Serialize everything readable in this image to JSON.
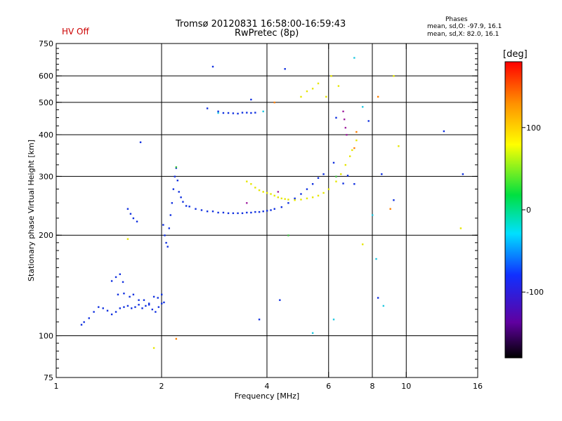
{
  "header": {
    "hv_status": "HV Off",
    "title_line1": "Tromsø 20120831 16:58:00-16:59:43",
    "title_line2": "RwPretec (8p)"
  },
  "stats": {
    "heading": "Phases",
    "line_o": "mean, sd,O: -97.9, 16.1",
    "line_x": "mean, sd,X:  82.0, 16.1"
  },
  "colorbar": {
    "label": "[deg]",
    "ticks": [
      {
        "value": 100,
        "label": "100"
      },
      {
        "value": 0,
        "label": "0"
      },
      {
        "value": -100,
        "label": "-100"
      }
    ],
    "range": [
      -180,
      180
    ]
  },
  "chart_data": {
    "type": "scatter",
    "xlabel": "Frequency [MHz]",
    "ylabel": "Stationary phase Virtual Height [km]",
    "xscale": "log",
    "yscale": "log",
    "xlim": [
      1,
      16
    ],
    "ylim": [
      75,
      750
    ],
    "x_ticks": [
      {
        "value": 1,
        "label": "1"
      },
      {
        "value": 2,
        "label": "2"
      },
      {
        "value": 4,
        "label": "4"
      },
      {
        "value": 6,
        "label": "6"
      },
      {
        "value": 8,
        "label": "8"
      },
      {
        "value": 10,
        "label": "10"
      },
      {
        "value": 16,
        "label": "16"
      }
    ],
    "y_ticks": [
      {
        "value": 75,
        "label": "75"
      },
      {
        "value": 100,
        "label": "100"
      },
      {
        "value": 200,
        "label": "200"
      },
      {
        "value": 300,
        "label": "300"
      },
      {
        "value": 400,
        "label": "400"
      },
      {
        "value": 500,
        "label": "500"
      },
      {
        "value": 600,
        "label": "600"
      },
      {
        "value": 750,
        "label": "750"
      }
    ],
    "x_grid": [
      2,
      4,
      6,
      8,
      10
    ],
    "y_grid": [
      100,
      200,
      300,
      400,
      500,
      600
    ],
    "series": [
      {
        "color": "#1030e0",
        "points": [
          [
            1.18,
            108
          ],
          [
            1.2,
            110
          ],
          [
            1.24,
            113
          ],
          [
            1.28,
            118
          ],
          [
            1.32,
            122
          ],
          [
            1.36,
            121
          ],
          [
            1.4,
            119
          ],
          [
            1.44,
            116
          ],
          [
            1.48,
            118
          ],
          [
            1.52,
            121
          ],
          [
            1.56,
            122
          ],
          [
            1.6,
            123
          ],
          [
            1.64,
            121
          ],
          [
            1.68,
            122
          ],
          [
            1.72,
            124
          ],
          [
            1.76,
            121
          ],
          [
            1.8,
            123
          ],
          [
            1.84,
            124
          ],
          [
            1.88,
            120
          ],
          [
            1.92,
            118
          ],
          [
            1.96,
            122
          ],
          [
            2.0,
            125
          ],
          [
            2.03,
            126
          ],
          [
            1.5,
            133
          ],
          [
            1.56,
            134
          ],
          [
            1.62,
            131
          ],
          [
            1.66,
            133
          ],
          [
            1.72,
            128
          ],
          [
            1.78,
            128
          ],
          [
            1.84,
            125
          ],
          [
            1.9,
            131
          ],
          [
            1.95,
            130
          ],
          [
            2.0,
            133
          ],
          [
            1.44,
            146
          ],
          [
            1.48,
            150
          ],
          [
            1.52,
            153
          ],
          [
            1.55,
            145
          ],
          [
            1.6,
            240
          ],
          [
            1.63,
            232
          ],
          [
            1.66,
            225
          ],
          [
            1.7,
            220
          ],
          [
            1.74,
            380
          ],
          [
            2.02,
            215
          ],
          [
            2.04,
            200
          ],
          [
            2.06,
            190
          ],
          [
            2.08,
            185
          ],
          [
            2.1,
            210
          ],
          [
            2.12,
            230
          ],
          [
            2.14,
            250
          ],
          [
            2.16,
            275
          ],
          [
            2.18,
            300
          ],
          [
            2.2,
            318
          ],
          [
            2.22,
            292
          ],
          [
            2.24,
            270
          ],
          [
            2.27,
            260
          ],
          [
            2.3,
            252
          ],
          [
            2.35,
            245
          ],
          [
            2.4,
            244
          ],
          [
            2.5,
            240
          ],
          [
            2.6,
            238
          ],
          [
            2.7,
            236
          ],
          [
            2.8,
            236
          ],
          [
            2.9,
            234
          ],
          [
            3.0,
            234
          ],
          [
            3.1,
            233
          ],
          [
            3.2,
            233
          ],
          [
            3.3,
            233
          ],
          [
            3.4,
            233
          ],
          [
            3.5,
            234
          ],
          [
            3.6,
            234
          ],
          [
            3.7,
            235
          ],
          [
            3.8,
            235
          ],
          [
            3.9,
            236
          ],
          [
            4.0,
            237
          ],
          [
            4.1,
            238
          ],
          [
            4.2,
            240
          ],
          [
            4.4,
            243
          ],
          [
            4.6,
            250
          ],
          [
            4.8,
            258
          ],
          [
            5.0,
            266
          ],
          [
            5.2,
            275
          ],
          [
            5.4,
            285
          ],
          [
            5.6,
            297
          ],
          [
            5.8,
            305
          ],
          [
            2.7,
            480
          ],
          [
            2.9,
            470
          ],
          [
            3.0,
            465
          ],
          [
            3.1,
            465
          ],
          [
            3.2,
            464
          ],
          [
            3.3,
            463
          ],
          [
            3.4,
            466
          ],
          [
            3.5,
            466
          ],
          [
            3.6,
            465
          ],
          [
            3.7,
            466
          ],
          [
            2.8,
            640
          ],
          [
            3.6,
            510
          ],
          [
            4.5,
            630
          ],
          [
            4.35,
            128
          ],
          [
            3.8,
            112
          ],
          [
            6.2,
            330
          ],
          [
            6.3,
            450
          ],
          [
            6.6,
            286
          ],
          [
            6.8,
            302
          ],
          [
            7.1,
            285
          ],
          [
            7.8,
            440
          ],
          [
            8.3,
            130
          ],
          [
            8.5,
            305
          ],
          [
            9.2,
            255
          ],
          [
            12.8,
            410
          ],
          [
            14.5,
            305
          ]
        ]
      },
      {
        "color": "#e6e600",
        "points": [
          [
            3.5,
            290
          ],
          [
            3.6,
            285
          ],
          [
            3.7,
            278
          ],
          [
            3.8,
            273
          ],
          [
            3.9,
            270
          ],
          [
            4.0,
            268
          ],
          [
            4.1,
            266
          ],
          [
            4.2,
            263
          ],
          [
            4.3,
            260
          ],
          [
            4.4,
            258
          ],
          [
            4.5,
            257
          ],
          [
            4.6,
            256
          ],
          [
            4.8,
            255
          ],
          [
            5.0,
            256
          ],
          [
            5.2,
            258
          ],
          [
            5.4,
            260
          ],
          [
            5.6,
            263
          ],
          [
            5.8,
            268
          ],
          [
            6.0,
            275
          ],
          [
            6.3,
            290
          ],
          [
            6.5,
            305
          ],
          [
            6.7,
            325
          ],
          [
            6.9,
            345
          ],
          [
            7.0,
            360
          ],
          [
            7.2,
            385
          ],
          [
            5.0,
            520
          ],
          [
            5.2,
            540
          ],
          [
            5.4,
            550
          ],
          [
            5.6,
            570
          ],
          [
            5.9,
            520
          ],
          [
            6.1,
            600
          ],
          [
            6.4,
            560
          ],
          [
            9.2,
            600
          ],
          [
            9.5,
            370
          ],
          [
            14.3,
            210
          ],
          [
            7.5,
            188
          ],
          [
            1.6,
            195
          ],
          [
            1.9,
            92
          ]
        ]
      },
      {
        "color": "#ff8000",
        "points": [
          [
            2.2,
            98
          ],
          [
            4.2,
            500
          ],
          [
            7.2,
            408
          ],
          [
            7.1,
            365
          ],
          [
            8.3,
            520
          ],
          [
            9.0,
            240
          ]
        ]
      },
      {
        "color": "#20c8e0",
        "points": [
          [
            3.9,
            470
          ],
          [
            7.1,
            680
          ],
          [
            7.5,
            485
          ],
          [
            8.0,
            230
          ],
          [
            8.2,
            170
          ],
          [
            8.6,
            123
          ],
          [
            6.2,
            112
          ],
          [
            5.4,
            102
          ],
          [
            2.9,
            465
          ]
        ]
      },
      {
        "color": "#40c040",
        "points": [
          [
            2.2,
            320
          ],
          [
            4.6,
            200
          ],
          [
            6.3,
            300
          ]
        ]
      },
      {
        "color": "#a020a0",
        "points": [
          [
            6.6,
            470
          ],
          [
            6.65,
            445
          ],
          [
            6.7,
            420
          ],
          [
            6.75,
            400
          ],
          [
            4.3,
            270
          ],
          [
            3.5,
            250
          ]
        ]
      }
    ]
  }
}
